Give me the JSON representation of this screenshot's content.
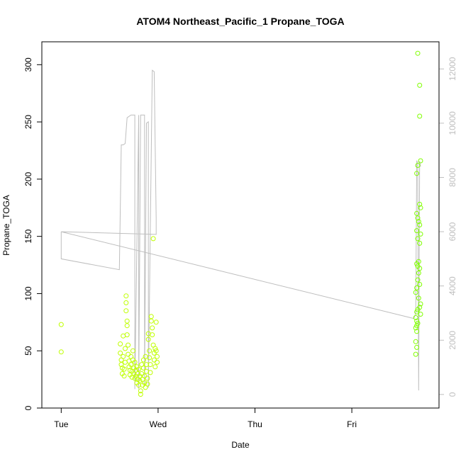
{
  "chart_data": {
    "type": "scatter",
    "title": "ATOM4 Northeast_Pacific_1 Propane_TOGA",
    "xlabel": "Date",
    "ylabel": "Propane_TOGA",
    "x_ticks": [
      "Tue",
      "Wed",
      "Thu",
      "Fri"
    ],
    "x_tick_days": [
      0,
      1,
      2,
      3
    ],
    "xlim_days": [
      -0.2,
      3.9
    ],
    "ylim": [
      0,
      320
    ],
    "y_ticks": [
      0,
      50,
      100,
      150,
      200,
      250,
      300
    ],
    "y2_ticks": [
      0,
      2000,
      4000,
      6000,
      8000,
      10000,
      12000
    ],
    "y2lim": [
      -500,
      13000
    ],
    "grid": false,
    "legend": "none",
    "colors": {
      "points_early": "#bfff00",
      "points_late": "#80ff00",
      "altitude_line": "#bebebe",
      "axis": "#000000",
      "right_axis": "#bebebe"
    },
    "series": [
      {
        "type": "scatter",
        "points": [
          [
            0.0,
            73
          ],
          [
            0.0,
            49
          ],
          [
            0.61,
            56
          ],
          [
            0.61,
            48
          ],
          [
            0.62,
            42
          ],
          [
            0.62,
            38
          ],
          [
            0.63,
            35
          ],
          [
            0.63,
            30
          ],
          [
            0.64,
            63
          ],
          [
            0.64,
            45
          ],
          [
            0.65,
            34
          ],
          [
            0.65,
            28
          ],
          [
            0.66,
            52
          ],
          [
            0.66,
            40
          ],
          [
            0.67,
            98
          ],
          [
            0.67,
            92
          ],
          [
            0.67,
            85
          ],
          [
            0.68,
            76
          ],
          [
            0.68,
            72
          ],
          [
            0.68,
            64
          ],
          [
            0.69,
            55
          ],
          [
            0.69,
            47
          ],
          [
            0.7,
            41
          ],
          [
            0.7,
            36
          ],
          [
            0.71,
            33
          ],
          [
            0.71,
            29
          ],
          [
            0.72,
            45
          ],
          [
            0.72,
            38
          ],
          [
            0.73,
            32
          ],
          [
            0.73,
            27
          ],
          [
            0.74,
            50
          ],
          [
            0.74,
            42
          ],
          [
            0.75,
            35
          ],
          [
            0.75,
            30
          ],
          [
            0.76,
            26
          ],
          [
            0.76,
            40
          ],
          [
            0.77,
            33
          ],
          [
            0.77,
            28
          ],
          [
            0.78,
            22
          ],
          [
            0.78,
            36
          ],
          [
            0.79,
            30
          ],
          [
            0.79,
            25
          ],
          [
            0.8,
            20
          ],
          [
            0.8,
            34
          ],
          [
            0.81,
            28
          ],
          [
            0.81,
            24
          ],
          [
            0.82,
            15
          ],
          [
            0.82,
            12
          ],
          [
            0.83,
            38
          ],
          [
            0.83,
            30
          ],
          [
            0.84,
            25
          ],
          [
            0.84,
            20
          ],
          [
            0.85,
            42
          ],
          [
            0.85,
            35
          ],
          [
            0.86,
            28
          ],
          [
            0.86,
            22
          ],
          [
            0.87,
            18
          ],
          [
            0.87,
            45
          ],
          [
            0.88,
            38
          ],
          [
            0.88,
            32
          ],
          [
            0.89,
            26
          ],
          [
            0.89,
            21
          ],
          [
            0.9,
            65
          ],
          [
            0.9,
            60
          ],
          [
            0.91,
            50
          ],
          [
            0.91,
            44
          ],
          [
            0.92,
            38
          ],
          [
            0.92,
            31
          ],
          [
            0.93,
            80
          ],
          [
            0.93,
            76
          ],
          [
            0.94,
            70
          ],
          [
            0.94,
            64
          ],
          [
            0.95,
            148
          ],
          [
            0.95,
            55
          ],
          [
            0.96,
            48
          ],
          [
            0.96,
            42
          ],
          [
            0.97,
            36
          ],
          [
            0.97,
            52
          ],
          [
            0.98,
            75
          ],
          [
            0.98,
            50
          ],
          [
            0.99,
            45
          ],
          [
            0.99,
            40
          ],
          [
            3.68,
            310
          ],
          [
            3.7,
            282
          ],
          [
            3.7,
            255
          ],
          [
            3.71,
            216
          ],
          [
            3.68,
            212
          ],
          [
            3.67,
            205
          ],
          [
            3.7,
            178
          ],
          [
            3.71,
            175
          ],
          [
            3.67,
            170
          ],
          [
            3.68,
            166
          ],
          [
            3.69,
            163
          ],
          [
            3.7,
            160
          ],
          [
            3.67,
            155
          ],
          [
            3.71,
            152
          ],
          [
            3.68,
            148
          ],
          [
            3.7,
            144
          ],
          [
            3.69,
            128
          ],
          [
            3.67,
            126
          ],
          [
            3.68,
            124
          ],
          [
            3.7,
            122
          ],
          [
            3.69,
            118
          ],
          [
            3.68,
            112
          ],
          [
            3.7,
            108
          ],
          [
            3.67,
            105
          ],
          [
            3.66,
            101
          ],
          [
            3.69,
            96
          ],
          [
            3.71,
            91
          ],
          [
            3.7,
            88
          ],
          [
            3.68,
            86
          ],
          [
            3.67,
            84
          ],
          [
            3.71,
            82
          ],
          [
            3.66,
            79
          ],
          [
            3.67,
            76
          ],
          [
            3.68,
            74
          ],
          [
            3.67,
            72
          ],
          [
            3.66,
            70
          ],
          [
            3.67,
            67
          ],
          [
            3.66,
            58
          ],
          [
            3.67,
            53
          ],
          [
            3.66,
            47
          ]
        ]
      },
      {
        "type": "line",
        "axis": "right",
        "points": [
          [
            0.0,
            6000
          ],
          [
            0.0,
            5000
          ],
          [
            0.6,
            4600
          ],
          [
            0.62,
            9200
          ],
          [
            0.64,
            9200
          ],
          [
            0.66,
            9250
          ],
          [
            0.68,
            10200
          ],
          [
            0.72,
            10300
          ],
          [
            0.76,
            10300
          ],
          [
            0.76,
            200
          ],
          [
            0.8,
            10300
          ],
          [
            0.8,
            200
          ],
          [
            0.82,
            10300
          ],
          [
            0.86,
            10300
          ],
          [
            0.86,
            300
          ],
          [
            0.88,
            10000
          ],
          [
            0.9,
            10050
          ],
          [
            0.9,
            250
          ],
          [
            0.94,
            11950
          ],
          [
            0.96,
            11900
          ],
          [
            0.98,
            6500
          ],
          [
            0.98,
            5900
          ],
          [
            0.0,
            6000
          ],
          [
            3.64,
            2800
          ],
          [
            3.66,
            3000
          ],
          [
            3.67,
            8600
          ],
          [
            3.68,
            8550
          ],
          [
            3.69,
            150
          ],
          [
            3.7,
            8600
          ],
          [
            3.71,
            8400
          ]
        ]
      }
    ]
  }
}
